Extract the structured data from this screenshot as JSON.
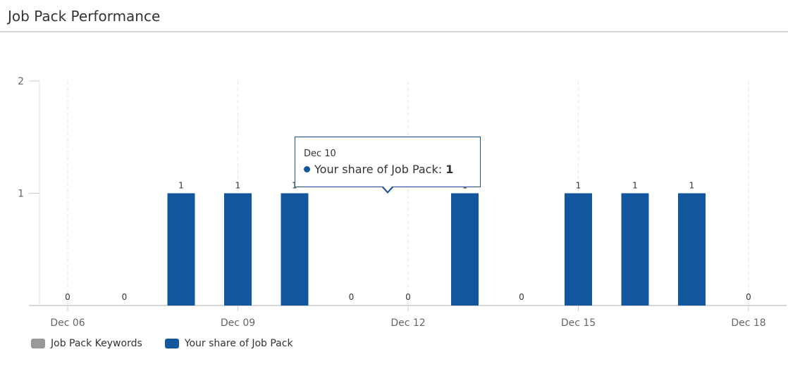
{
  "header": {
    "title": "Job Pack Performance"
  },
  "colors": {
    "keywords": "#999999",
    "share": "#12579d",
    "tooltip_border": "#1a4f91"
  },
  "chart_data": {
    "type": "bar",
    "x_tick_labels": [
      "Dec 06",
      "Dec 09",
      "Dec 12",
      "Dec 15",
      "Dec 18"
    ],
    "categories": [
      "Dec 06",
      "Dec 07",
      "Dec 08",
      "Dec 09",
      "Dec 10",
      "Dec 11",
      "Dec 12",
      "Dec 13",
      "Dec 14",
      "Dec 15",
      "Dec 16",
      "Dec 17",
      "Dec 18"
    ],
    "series": [
      {
        "name": "Job Pack Keywords",
        "color": "#999999",
        "values": [
          0,
          0,
          0,
          0,
          0,
          0,
          0,
          0,
          0,
          0,
          0,
          0,
          0
        ]
      },
      {
        "name": "Your share of Job Pack",
        "color": "#12579d",
        "values": [
          0,
          0,
          1,
          1,
          1,
          0,
          0,
          1,
          0,
          1,
          1,
          1,
          0
        ]
      }
    ],
    "y_ticks": [
      1,
      2
    ],
    "ylim": [
      0,
      2
    ],
    "grid": "vertical-dashed",
    "legend_position": "bottom-left",
    "data_labels": true
  },
  "tooltip": {
    "date": "Dec 10",
    "series_name": "Your share of Job Pack",
    "value": "1"
  }
}
